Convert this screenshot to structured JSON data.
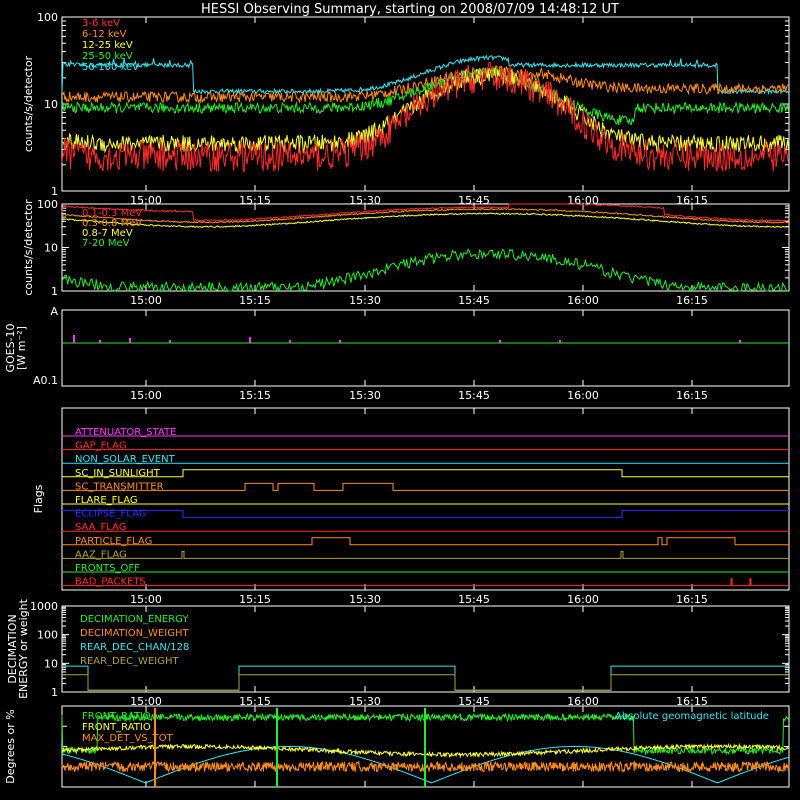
{
  "title": "HESSI Observing Summary, starting on 2008/07/09 14:48:12 UT",
  "colors": {
    "background": "#000000",
    "axis": "#ffffff",
    "red": "#ff2a2a",
    "orange": "#ff8c1a",
    "yellow": "#ffff33",
    "green": "#22ee22",
    "cyan": "#33e6f0",
    "magenta": "#ff33ff",
    "blue": "#2a2aff",
    "olive": "#b0a030"
  },
  "time_ticks": [
    "15:00",
    "15:15",
    "15:30",
    "15:45",
    "16:00",
    "16:15"
  ],
  "chart_data": [
    {
      "id": "counts",
      "type": "line",
      "ylabel": "counts/s/detector",
      "yscale": "log",
      "ylim": [
        1,
        100
      ],
      "ytick_labels": [
        "1",
        "10",
        "100"
      ],
      "x_range_minutes": [
        0,
        61
      ],
      "legend_placement": "top-left",
      "series": [
        {
          "name": "3-6 keV",
          "color": "red"
        },
        {
          "name": "6-12 keV",
          "color": "orange"
        },
        {
          "name": "12-25 keV",
          "color": "yellow"
        },
        {
          "name": "25-50 keV",
          "color": "green"
        },
        {
          "name": "50-100 keV",
          "color": "cyan"
        }
      ]
    },
    {
      "id": "high-energy",
      "type": "line",
      "ylabel": "counts/s/detector",
      "yscale": "log",
      "ylim": [
        1,
        100
      ],
      "ytick_labels": [
        "1",
        "10",
        "100"
      ],
      "legend_placement": "top-left",
      "series": [
        {
          "name": "0.1-0.3 MeV",
          "color": "red"
        },
        {
          "name": "0.3-0.8 MeV",
          "color": "orange"
        },
        {
          "name": "0.8-7 MeV",
          "color": "yellow"
        },
        {
          "name": "7-20 MeV",
          "color": "green"
        }
      ]
    },
    {
      "id": "goes",
      "type": "line",
      "ylabel_lines": [
        "GOES-10",
        "[W m⁻²]"
      ],
      "ytick_labels": [
        "A",
        "A0.1"
      ]
    },
    {
      "id": "flags",
      "type": "line",
      "ylabel": "Flags",
      "flags": [
        {
          "name": "ATTENUATOR_STATE",
          "color": "magenta"
        },
        {
          "name": "GAP_FLAG",
          "color": "red"
        },
        {
          "name": "NON_SOLAR_EVENT",
          "color": "cyan"
        },
        {
          "name": "SC_IN_SUNLIGHT",
          "color": "yellow"
        },
        {
          "name": "SC_TRANSMITTER",
          "color": "orange"
        },
        {
          "name": "FLARE_FLAG",
          "color": "yellow"
        },
        {
          "name": "ECLIPSE_FLAG",
          "color": "blue"
        },
        {
          "name": "SAA_FLAG",
          "color": "red"
        },
        {
          "name": "PARTICLE_FLAG",
          "color": "orange"
        },
        {
          "name": "AAZ_FLAG",
          "color": "olive"
        },
        {
          "name": "FRONTS_OFF",
          "color": "green"
        },
        {
          "name": "BAD_PACKETS",
          "color": "red"
        }
      ]
    },
    {
      "id": "decimation",
      "type": "line",
      "ylabel_lines": [
        "DECIMATION",
        "ENERGY or weight"
      ],
      "yscale": "log",
      "ylim": [
        1,
        1000
      ],
      "ytick_labels": [
        "1",
        "10",
        "100",
        "1000"
      ],
      "series": [
        {
          "name": "DECIMATION_ENERGY",
          "color": "green"
        },
        {
          "name": "DECIMATION_WEIGHT",
          "color": "orange"
        },
        {
          "name": "REAR_DEC_CHAN/128",
          "color": "cyan"
        },
        {
          "name": "REAR_DEC_WEIGHT",
          "color": "olive"
        }
      ]
    },
    {
      "id": "ratios",
      "type": "line",
      "ylabel": "Degrees or %",
      "ylim": [
        0,
        100
      ],
      "series": [
        {
          "name": "FRONT_RATIO",
          "color": "green"
        },
        {
          "name": "FRONT_RATIO",
          "color": "yellow"
        },
        {
          "name": "MAX_DET_VS_TOT",
          "color": "orange"
        }
      ],
      "annotation": "Absolute geomagnetic latitude"
    }
  ]
}
